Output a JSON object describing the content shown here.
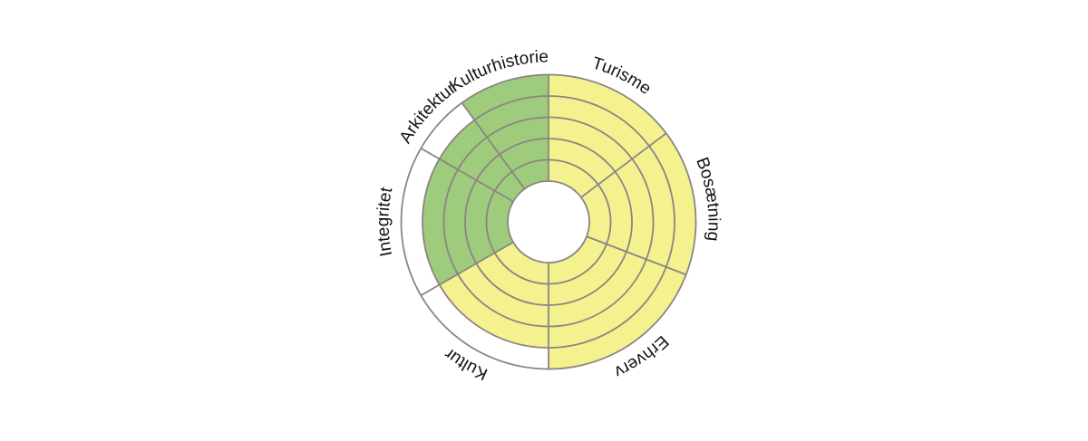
{
  "diagram": {
    "rings": 5,
    "colors": {
      "left": "#9fcb7c",
      "right": "#f4f18f",
      "empty": "#ffffff",
      "stroke": "#8c8483"
    },
    "sectors": [
      {
        "label": "Turisme",
        "side": "right",
        "value": 5
      },
      {
        "label": "Bosætning",
        "side": "right",
        "value": 5
      },
      {
        "label": "Erhverv",
        "side": "right",
        "value": 5
      },
      {
        "label": "Kultur",
        "side": "right",
        "value": 4
      },
      {
        "label": "Integritet",
        "side": "left",
        "value": 4
      },
      {
        "label": "Arkitektur",
        "side": "left",
        "value": 4
      },
      {
        "label": "Kulturhistorie",
        "side": "left",
        "value": 5
      }
    ]
  }
}
